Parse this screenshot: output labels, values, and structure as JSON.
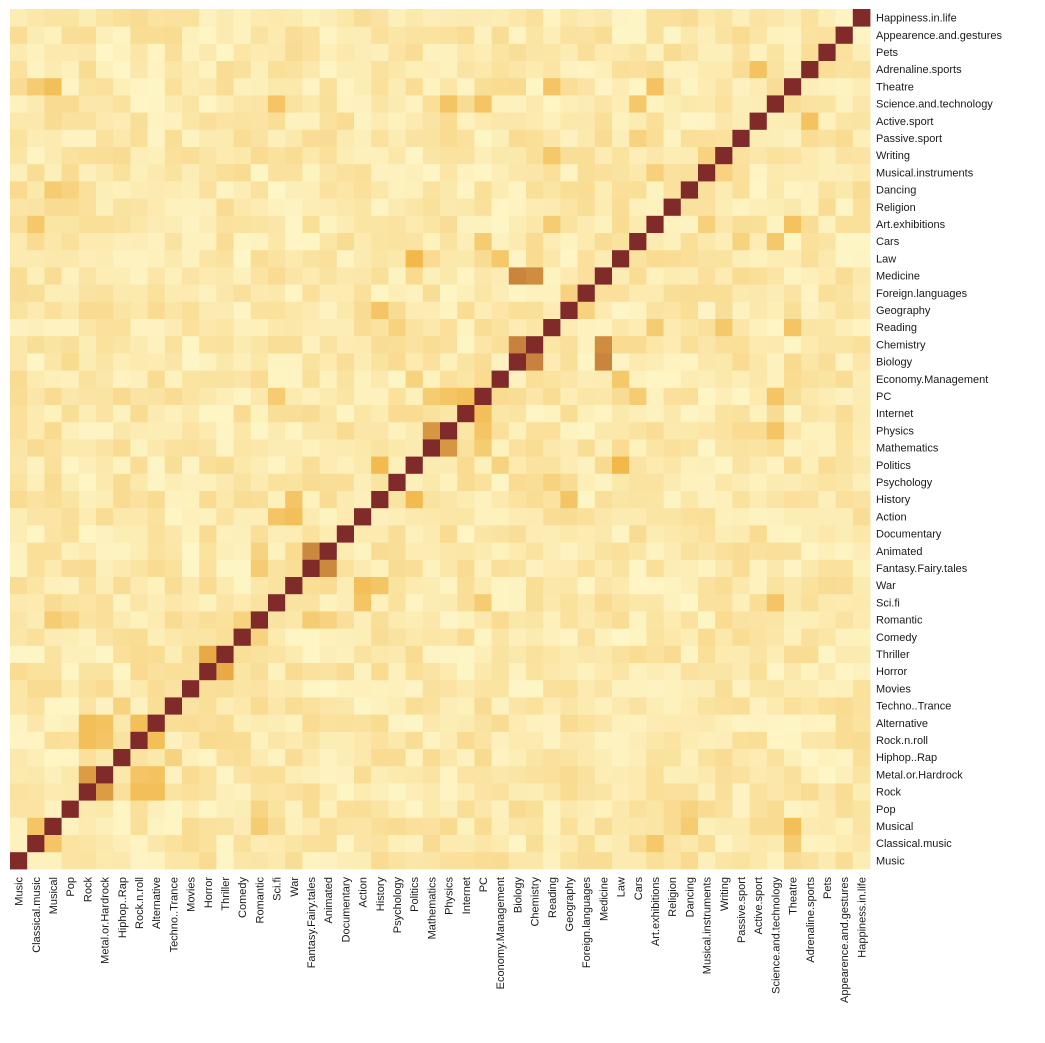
{
  "chart_data": {
    "type": "heatmap",
    "title": "",
    "xlabel": "",
    "ylabel": "",
    "variables": [
      "Music",
      "Classical.music",
      "Musical",
      "Pop",
      "Rock",
      "Metal.or.Hardrock",
      "Hiphop..Rap",
      "Rock.n.roll",
      "Alternative",
      "Techno..Trance",
      "Movies",
      "Horror",
      "Thriller",
      "Comedy",
      "Romantic",
      "Sci.fi",
      "War",
      "Fantasy.Fairy.tales",
      "Animated",
      "Documentary",
      "Action",
      "History",
      "Psychology",
      "Politics",
      "Mathematics",
      "Physics",
      "Internet",
      "PC",
      "Economy.Management",
      "Biology",
      "Chemistry",
      "Reading",
      "Geography",
      "Foreign.languages",
      "Medicine",
      "Law",
      "Cars",
      "Art.exhibitions",
      "Religion",
      "Dancing",
      "Musical.instruments",
      "Writing",
      "Passive.sport",
      "Active.sport",
      "Science.and.technology",
      "Theatre",
      "Adrenaline.sports",
      "Pets",
      "Appearence.and.gestures",
      "Happiness.in.life"
    ],
    "x_order": "left-to-right",
    "y_order": "bottom-to-top",
    "color_scale": {
      "low": "#fffbd1",
      "mid": "#f2b84a",
      "high": "#802a2a"
    },
    "diagonal": 1.0,
    "strong_pairs": [
      {
        "a": "Rock",
        "b": "Metal.or.Hardrock",
        "value": 0.6
      },
      {
        "a": "Fantasy.Fairy.tales",
        "b": "Animated",
        "value": 0.67
      },
      {
        "a": "Biology",
        "b": "Chemistry",
        "value": 0.69
      },
      {
        "a": "Biology",
        "b": "Medicine",
        "value": 0.68
      },
      {
        "a": "Chemistry",
        "b": "Medicine",
        "value": 0.65
      },
      {
        "a": "Physics",
        "b": "Mathematics",
        "value": 0.62
      },
      {
        "a": "Politics",
        "b": "Law",
        "value": 0.5
      },
      {
        "a": "Theatre",
        "b": "Adrenaline.sports",
        "value": 0.1
      },
      {
        "a": "Horror",
        "b": "Thriller",
        "value": 0.55
      },
      {
        "a": "Rock",
        "b": "Alternative",
        "value": 0.45
      },
      {
        "a": "Rock",
        "b": "Rock.n.roll",
        "value": 0.45
      },
      {
        "a": "Alternative",
        "b": "Rock.n.roll",
        "value": 0.45
      },
      {
        "a": "Metal.or.Hardrock",
        "b": "Alternative",
        "value": 0.42
      },
      {
        "a": "Metal.or.Hardrock",
        "b": "Rock.n.roll",
        "value": 0.4
      },
      {
        "a": "Comedy",
        "b": "Romantic",
        "value": 0.3
      },
      {
        "a": "Romantic",
        "b": "Fantasy.Fairy.tales",
        "value": 0.35
      },
      {
        "a": "Romantic",
        "b": "Animated",
        "value": 0.3
      },
      {
        "a": "War",
        "b": "Action",
        "value": 0.45
      },
      {
        "a": "War",
        "b": "History",
        "value": 0.4
      },
      {
        "a": "Sci.fi",
        "b": "Action",
        "value": 0.4
      },
      {
        "a": "Sci.fi",
        "b": "PC",
        "value": 0.35
      },
      {
        "a": "Sci.fi",
        "b": "Science.and.technology",
        "value": 0.4
      },
      {
        "a": "Action",
        "b": "War",
        "value": 0.45
      },
      {
        "a": "History",
        "b": "Politics",
        "value": 0.48
      },
      {
        "a": "History",
        "b": "Geography",
        "value": 0.4
      },
      {
        "a": "Psychology",
        "b": "Reading",
        "value": 0.3
      },
      {
        "a": "Politics",
        "b": "Economy.Management",
        "value": 0.3
      },
      {
        "a": "Mathematics",
        "b": "PC",
        "value": 0.35
      },
      {
        "a": "Physics",
        "b": "PC",
        "value": 0.4
      },
      {
        "a": "Physics",
        "b": "Science.and.technology",
        "value": 0.4
      },
      {
        "a": "PC",
        "b": "Internet",
        "value": 0.45
      },
      {
        "a": "PC",
        "b": "Science.and.technology",
        "value": 0.4
      },
      {
        "a": "Reading",
        "b": "Writing",
        "value": 0.38
      },
      {
        "a": "Reading",
        "b": "Theatre",
        "value": 0.4
      },
      {
        "a": "Reading",
        "b": "Art.exhibitions",
        "value": 0.35
      },
      {
        "a": "Art.exhibitions",
        "b": "Theatre",
        "value": 0.42
      },
      {
        "a": "Art.exhibitions",
        "b": "Musical.instruments",
        "value": 0.32
      },
      {
        "a": "Classical.music",
        "b": "Musical",
        "value": 0.4
      },
      {
        "a": "Classical.music",
        "b": "Art.exhibitions",
        "value": 0.38
      },
      {
        "a": "Classical.music",
        "b": "Theatre",
        "value": 0.35
      },
      {
        "a": "Musical",
        "b": "Theatre",
        "value": 0.45
      },
      {
        "a": "Musical",
        "b": "Romantic",
        "value": 0.35
      },
      {
        "a": "Musical",
        "b": "Dancing",
        "value": 0.35
      },
      {
        "a": "Pop",
        "b": "Dancing",
        "value": 0.3
      },
      {
        "a": "Pop",
        "b": "Romantic",
        "value": 0.28
      },
      {
        "a": "Hiphop..Rap",
        "b": "Techno..Trance",
        "value": 0.3
      },
      {
        "a": "Active.sport",
        "b": "Adrenaline.sports",
        "value": 0.42
      },
      {
        "a": "Passive.sport",
        "b": "Cars",
        "value": 0.3
      },
      {
        "a": "Cars",
        "b": "Science.and.technology",
        "value": 0.38
      },
      {
        "a": "Cars",
        "b": "PC",
        "value": 0.35
      },
      {
        "a": "Economy.Management",
        "b": "Law",
        "value": 0.38
      },
      {
        "a": "Foreign.languages",
        "b": "Geography",
        "value": 0.3
      },
      {
        "a": "Writing",
        "b": "Musical.instruments",
        "value": 0.3
      },
      {
        "a": "Music",
        "b": "Dancing",
        "value": 0.25
      },
      {
        "a": "Happiness.in.life",
        "b": "Pets",
        "value": 0.1
      }
    ]
  }
}
